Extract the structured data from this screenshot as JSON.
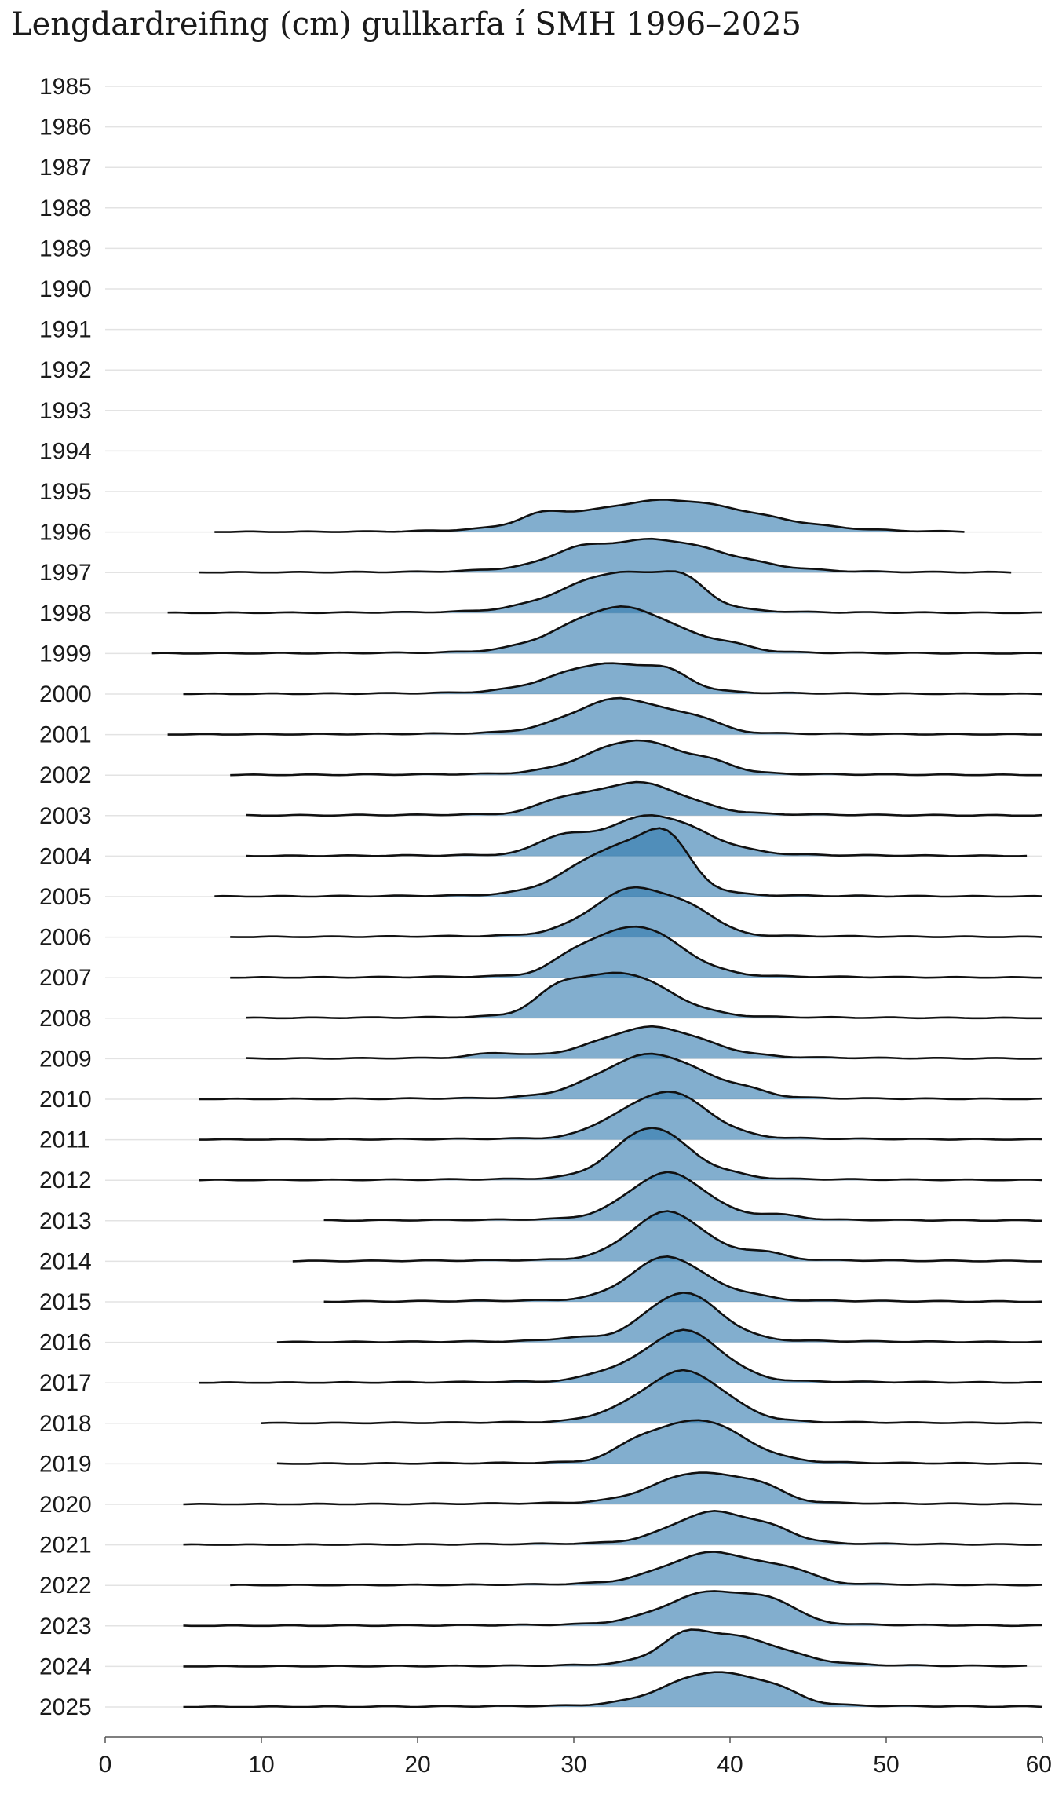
{
  "chart_data": {
    "type": "ridgeline",
    "title": "Lengdardreifing (cm) gullkarfa í SMH 1996–2025",
    "xlabel": "",
    "ylabel": "",
    "xlim": [
      0,
      60
    ],
    "x_ticks": [
      "0",
      "10",
      "20",
      "30",
      "40",
      "50",
      "60"
    ],
    "y_categories": [
      "1985",
      "1986",
      "1987",
      "1988",
      "1989",
      "1990",
      "1991",
      "1992",
      "1993",
      "1994",
      "1995",
      "1996",
      "1997",
      "1998",
      "1999",
      "2000",
      "2001",
      "2002",
      "2003",
      "2004",
      "2005",
      "2006",
      "2007",
      "2008",
      "2009",
      "2010",
      "2011",
      "2012",
      "2013",
      "2014",
      "2015",
      "2016",
      "2017",
      "2018",
      "2019",
      "2020",
      "2021",
      "2022",
      "2023",
      "2024",
      "2025"
    ],
    "fill_color": "#2f78ad",
    "line_color": "#111111",
    "grid": true,
    "series": [
      {
        "year": "1996",
        "start": 7,
        "end": 55,
        "peak": 36,
        "height": 0.96,
        "spread": 5.5,
        "shoulder": 28,
        "shoulder_height": 0.3
      },
      {
        "year": "1997",
        "start": 6,
        "end": 58,
        "peak": 35,
        "height": 1.0,
        "spread": 4.5,
        "shoulder": 30,
        "shoulder_height": 0.25
      },
      {
        "year": "1998",
        "start": 4,
        "end": 60,
        "peak": 33,
        "height": 1.25,
        "spread": 3.5,
        "shoulder": 37,
        "shoulder_height": 0.6
      },
      {
        "year": "1999",
        "start": 3,
        "end": 60,
        "peak": 33,
        "height": 1.45,
        "spread": 3.5,
        "shoulder": 40,
        "shoulder_height": 0.15
      },
      {
        "year": "2000",
        "start": 5,
        "end": 60,
        "peak": 32,
        "height": 0.9,
        "spread": 3.2,
        "shoulder": 36,
        "shoulder_height": 0.4
      },
      {
        "year": "2001",
        "start": 4,
        "end": 60,
        "peak": 33,
        "height": 1.1,
        "spread": 3.0,
        "shoulder": 38,
        "shoulder_height": 0.3
      },
      {
        "year": "2002",
        "start": 8,
        "end": 60,
        "peak": 34,
        "height": 1.05,
        "spread": 3.0,
        "shoulder": 39,
        "shoulder_height": 0.2
      },
      {
        "year": "2003",
        "start": 9,
        "end": 60,
        "peak": 34,
        "height": 1.0,
        "spread": 3.0,
        "shoulder": 29,
        "shoulder_height": 0.3
      },
      {
        "year": "2004",
        "start": 9,
        "end": 59,
        "peak": 35,
        "height": 1.25,
        "spread": 3.2,
        "shoulder": 29,
        "shoulder_height": 0.45
      },
      {
        "year": "2005",
        "start": 7,
        "end": 60,
        "peak": 33,
        "height": 1.55,
        "spread": 3.0,
        "shoulder": 36,
        "shoulder_height": 1.2
      },
      {
        "year": "2006",
        "start": 8,
        "end": 60,
        "peak": 34,
        "height": 1.55,
        "spread": 2.7,
        "shoulder": 38,
        "shoulder_height": 0.4
      },
      {
        "year": "2007",
        "start": 8,
        "end": 60,
        "peak": 34,
        "height": 1.6,
        "spread": 2.8,
        "shoulder": 30,
        "shoulder_height": 0.35
      },
      {
        "year": "2008",
        "start": 9,
        "end": 60,
        "peak": 33,
        "height": 1.4,
        "spread": 3.0,
        "shoulder": 29,
        "shoulder_height": 0.55
      },
      {
        "year": "2009",
        "start": 9,
        "end": 60,
        "peak": 35,
        "height": 0.95,
        "spread": 3.2,
        "shoulder": 25,
        "shoulder_height": 0.15
      },
      {
        "year": "2010",
        "start": 6,
        "end": 60,
        "peak": 35,
        "height": 1.4,
        "spread": 3.2,
        "shoulder": 41,
        "shoulder_height": 0.15
      },
      {
        "year": "2011",
        "start": 6,
        "end": 60,
        "peak": 36,
        "height": 1.5,
        "spread": 2.5,
        "shoulder": 32,
        "shoulder_height": 0.2
      },
      {
        "year": "2012",
        "start": 6,
        "end": 60,
        "peak": 35,
        "height": 1.65,
        "spread": 2.3,
        "shoulder": 40,
        "shoulder_height": 0.1
      },
      {
        "year": "2013",
        "start": 14,
        "end": 60,
        "peak": 36,
        "height": 1.5,
        "spread": 2.4,
        "shoulder": 43,
        "shoulder_height": 0.15
      },
      {
        "year": "2014",
        "start": 12,
        "end": 60,
        "peak": 36,
        "height": 1.55,
        "spread": 2.3,
        "shoulder": 42,
        "shoulder_height": 0.25
      },
      {
        "year": "2015",
        "start": 14,
        "end": 60,
        "peak": 36,
        "height": 1.4,
        "spread": 2.3,
        "shoulder": 41,
        "shoulder_height": 0.15
      },
      {
        "year": "2016",
        "start": 11,
        "end": 60,
        "peak": 37,
        "height": 1.55,
        "spread": 2.3,
        "shoulder": 30,
        "shoulder_height": 0.1
      },
      {
        "year": "2017",
        "start": 6,
        "end": 60,
        "peak": 37,
        "height": 1.65,
        "spread": 2.4,
        "shoulder": 32,
        "shoulder_height": 0.2
      },
      {
        "year": "2018",
        "start": 10,
        "end": 60,
        "peak": 37,
        "height": 1.65,
        "spread": 2.6,
        "shoulder": 32,
        "shoulder_height": 0.1
      },
      {
        "year": "2019",
        "start": 11,
        "end": 60,
        "peak": 38,
        "height": 1.35,
        "spread": 2.8,
        "shoulder": 34,
        "shoulder_height": 0.35
      },
      {
        "year": "2020",
        "start": 5,
        "end": 60,
        "peak": 38,
        "height": 0.95,
        "spread": 2.8,
        "shoulder": 42,
        "shoulder_height": 0.35
      },
      {
        "year": "2021",
        "start": 5,
        "end": 60,
        "peak": 39,
        "height": 1.0,
        "spread": 2.6,
        "shoulder": 43,
        "shoulder_height": 0.25
      },
      {
        "year": "2022",
        "start": 8,
        "end": 60,
        "peak": 39,
        "height": 1.0,
        "spread": 3.0,
        "shoulder": 44,
        "shoulder_height": 0.3
      },
      {
        "year": "2023",
        "start": 5,
        "end": 60,
        "peak": 39,
        "height": 1.05,
        "spread": 3.0,
        "shoulder": 43,
        "shoulder_height": 0.4
      },
      {
        "year": "2024",
        "start": 5,
        "end": 59,
        "peak": 40,
        "height": 0.9,
        "spread": 3.2,
        "shoulder": 37,
        "shoulder_height": 0.5
      },
      {
        "year": "2025",
        "start": 5,
        "end": 60,
        "peak": 39,
        "height": 1.05,
        "spread": 3.0,
        "shoulder": 43,
        "shoulder_height": 0.25
      }
    ]
  }
}
